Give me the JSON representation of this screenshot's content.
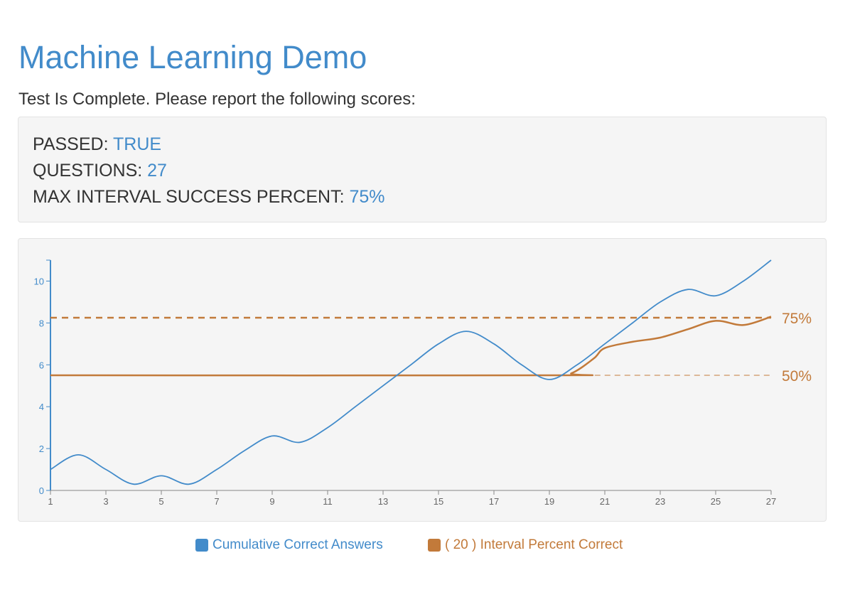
{
  "page": {
    "title": "Machine Learning Demo",
    "subtitle": "Test Is Complete. Please report the following scores:"
  },
  "results": [
    {
      "label": "PASSED:",
      "value": "TRUE"
    },
    {
      "label": "QUESTIONS:",
      "value": "27"
    },
    {
      "label": "MAX INTERVAL SUCCESS PERCENT:",
      "value": "75%"
    }
  ],
  "colors": {
    "blue": "#428bca",
    "orange": "#c27a3a",
    "well_bg": "#f5f5f5",
    "text": "#333333"
  },
  "chart_data": {
    "type": "line",
    "x_ticks": [
      1,
      3,
      5,
      7,
      9,
      11,
      13,
      15,
      17,
      19,
      21,
      23,
      25,
      27
    ],
    "y_ticks": [
      0,
      2,
      4,
      6,
      8,
      10
    ],
    "xlim": [
      1,
      27
    ],
    "ylim": [
      0,
      11
    ],
    "series": [
      {
        "name": "Cumulative Correct Answers",
        "color": "#428bca",
        "x": [
          1,
          2,
          3,
          4,
          5,
          6,
          7,
          8,
          9,
          10,
          11,
          12,
          13,
          14,
          15,
          16,
          17,
          18,
          19,
          20,
          21,
          22,
          23,
          24,
          25,
          26,
          27
        ],
        "y": [
          1,
          1.7,
          1,
          0.3,
          0.7,
          0.3,
          1,
          1.9,
          2.6,
          2.3,
          3,
          4,
          5,
          6,
          7,
          7.6,
          7,
          6,
          5.3,
          6,
          7,
          8,
          9,
          9.6,
          9.3,
          10,
          11
        ]
      },
      {
        "name": "( 20 ) Interval Percent Correct",
        "color": "#c27a3a",
        "x": [
          1,
          19,
          19.8,
          20.6,
          21,
          22,
          23,
          24,
          25,
          26,
          27
        ],
        "y": [
          5.5,
          5.5,
          5.6,
          6.3,
          6.8,
          7.1,
          7.3,
          7.7,
          8.1,
          7.9,
          8.3
        ]
      }
    ],
    "reference_lines": [
      {
        "label": "75%",
        "y": 8.25,
        "style": "dashed"
      },
      {
        "label": "50%",
        "y": 5.5,
        "style": "dashed-thin"
      }
    ],
    "legend_position": "bottom"
  },
  "legend": [
    {
      "label": "Cumulative Correct Answers",
      "color": "#428bca"
    },
    {
      "label": "( 20 ) Interval Percent Correct",
      "color": "#c27a3a"
    }
  ]
}
